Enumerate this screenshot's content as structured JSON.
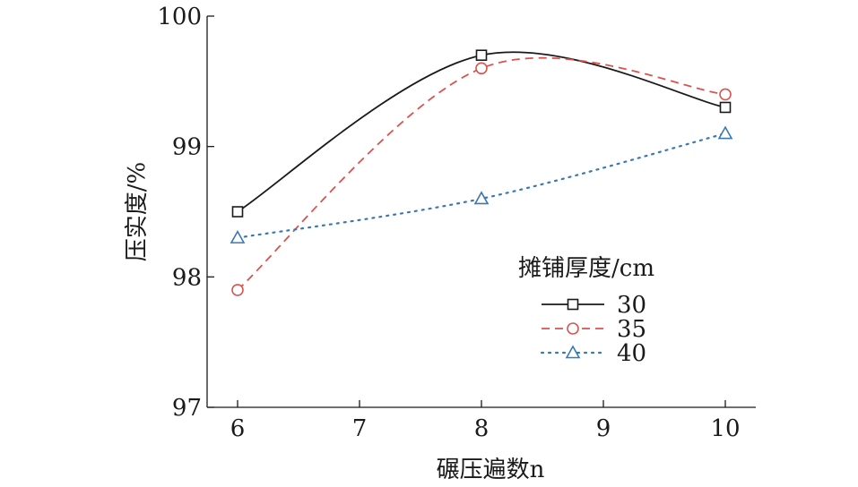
{
  "chart_data": {
    "type": "line",
    "title": "",
    "xlabel": "碾压遍数n",
    "ylabel": "压实度/%",
    "xlim": [
      5.75,
      10.25
    ],
    "ylim": [
      97,
      100
    ],
    "xticks": [
      6,
      7,
      8,
      9,
      10
    ],
    "yticks": [
      97,
      98,
      99,
      100
    ],
    "grid": false,
    "legend": {
      "title": "摊铺厚度/cm",
      "position": "right-middle"
    },
    "series": [
      {
        "name": "30",
        "x": [
          6,
          8,
          10
        ],
        "y": [
          98.5,
          99.7,
          99.3
        ],
        "color": "#1a1a1a",
        "marker": "square",
        "line_style": "solid"
      },
      {
        "name": "35",
        "x": [
          6,
          8,
          10
        ],
        "y": [
          97.9,
          99.6,
          99.4
        ],
        "color": "#d9534f",
        "marker": "circle",
        "line_style": "dashed"
      },
      {
        "name": "40",
        "x": [
          6,
          8,
          10
        ],
        "y": [
          98.3,
          98.6,
          99.1
        ],
        "color": "#3a78b4",
        "marker": "triangle",
        "line_style": "dotted"
      }
    ]
  }
}
